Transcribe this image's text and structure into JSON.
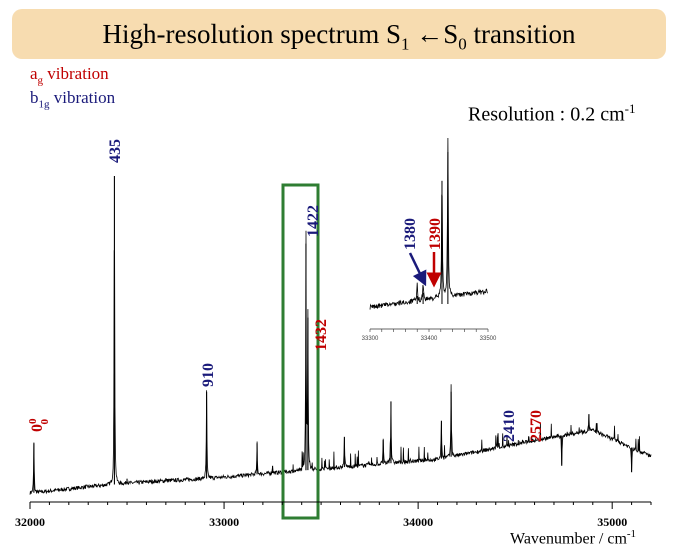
{
  "title": {
    "prefix": "High-resolution spectrum S",
    "upper_sub": "1",
    "arrow": " ←S",
    "lower_sub": "0",
    "suffix": " transition"
  },
  "legend": {
    "ag_main": "a",
    "ag_sub": "g",
    "ag_rest": " vibration",
    "b1g_main": "b",
    "b1g_sub": "1g",
    "b1g_rest": " vibration"
  },
  "resolution": {
    "text": "Resolution : 0.2 cm",
    "sup": "-1"
  },
  "x_axis": {
    "label": "Wavenumber / cm",
    "label_sup": "-1"
  },
  "colors": {
    "ag": "#c00000",
    "b1g": "#1a1a7a",
    "highlight_box": "#2e7d32",
    "title_box": "#f7dcb0",
    "spectrum": "#000000"
  },
  "chart_data": {
    "type": "line",
    "title": "High-resolution spectrum S1 ←S0 transition",
    "xlabel": "Wavenumber / cm-1",
    "ylabel": "",
    "xlim": [
      32000,
      35200
    ],
    "x_ticks": [
      32000,
      33000,
      34000,
      35000
    ],
    "x_tick_labels": [
      "32000",
      "33000",
      "34000",
      "35000"
    ],
    "x_minor_step": 100,
    "grid": false,
    "y_units": "relative intensity (0-1)",
    "baseline": [
      [
        32000,
        0.015
      ],
      [
        32300,
        0.035
      ],
      [
        32600,
        0.05
      ],
      [
        32900,
        0.06
      ],
      [
        33200,
        0.075
      ],
      [
        33500,
        0.09
      ],
      [
        33800,
        0.105
      ],
      [
        34100,
        0.12
      ],
      [
        34400,
        0.155
      ],
      [
        34700,
        0.19
      ],
      [
        34900,
        0.21
      ],
      [
        35050,
        0.17
      ],
      [
        35200,
        0.13
      ]
    ],
    "peaks": [
      {
        "x": 32020,
        "y": 0.17,
        "label": "0",
        "label_sup": "0",
        "label_sub": "0",
        "symmetry": "ag"
      },
      {
        "x": 32435,
        "y": 1.0,
        "label": "435",
        "symmetry": "b1g"
      },
      {
        "x": 32500,
        "y": 0.06
      },
      {
        "x": 32700,
        "y": 0.06
      },
      {
        "x": 32910,
        "y": 0.33,
        "label": "910",
        "symmetry": "b1g"
      },
      {
        "x": 33170,
        "y": 0.17
      },
      {
        "x": 33250,
        "y": 0.1
      },
      {
        "x": 33422,
        "y": 0.79,
        "label": "1422",
        "symmetry": "b1g"
      },
      {
        "x": 33432,
        "y": 0.56,
        "label": "1432",
        "symmetry": "ag"
      },
      {
        "x": 33620,
        "y": 0.19
      },
      {
        "x": 33820,
        "y": 0.18
      },
      {
        "x": 33860,
        "y": 0.3
      },
      {
        "x": 34120,
        "y": 0.24
      },
      {
        "x": 34170,
        "y": 0.33
      },
      {
        "x": 34410,
        "y": 0.19,
        "label": "2410",
        "symmetry": "b1g"
      },
      {
        "x": 34570,
        "y": 0.19,
        "label": "2570",
        "symmetry": "ag"
      },
      {
        "x": 34740,
        "y": 0.1
      },
      {
        "x": 34880,
        "y": 0.26
      },
      {
        "x": 35100,
        "y": 0.08
      }
    ],
    "highlight_region": [
      33300,
      33500
    ],
    "inset": {
      "xlim": [
        33300,
        33500
      ],
      "x_ticks": [
        33300,
        33400,
        33500
      ],
      "x_tick_labels": [
        "33300",
        "33400",
        "33500"
      ],
      "peaks": [
        {
          "x": 33380,
          "y": 0.1,
          "label": "1380",
          "symmetry": "b1g"
        },
        {
          "x": 33390,
          "y": 0.12,
          "label": "1390",
          "symmetry": "ag"
        },
        {
          "x": 33422,
          "y": 0.82
        },
        {
          "x": 33432,
          "y": 1.0
        }
      ]
    }
  }
}
